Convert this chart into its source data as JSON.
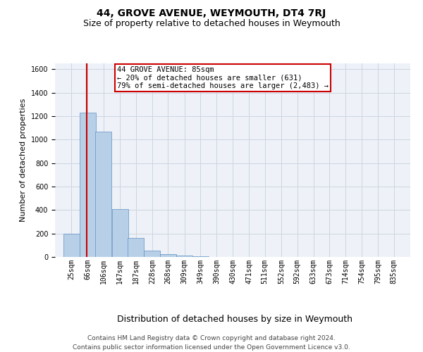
{
  "title": "44, GROVE AVENUE, WEYMOUTH, DT4 7RJ",
  "subtitle": "Size of property relative to detached houses in Weymouth",
  "xlabel": "Distribution of detached houses by size in Weymouth",
  "ylabel": "Number of detached properties",
  "footer_line1": "Contains HM Land Registry data © Crown copyright and database right 2024.",
  "footer_line2": "Contains public sector information licensed under the Open Government Licence v3.0.",
  "annotation_line1": "44 GROVE AVENUE: 85sqm",
  "annotation_line2": "← 20% of detached houses are smaller (631)",
  "annotation_line3": "79% of semi-detached houses are larger (2,483) →",
  "property_size_sqm": 85,
  "bar_color": "#b8cfe8",
  "bar_edge_color": "#6090c0",
  "vline_color": "#cc0000",
  "annotation_box_edgecolor": "#cc0000",
  "grid_color": "#ccd5e0",
  "background_color": "#eef2f8",
  "categories": [
    "25sqm",
    "66sqm",
    "106sqm",
    "147sqm",
    "187sqm",
    "228sqm",
    "268sqm",
    "309sqm",
    "349sqm",
    "390sqm",
    "430sqm",
    "471sqm",
    "511sqm",
    "552sqm",
    "592sqm",
    "633sqm",
    "673sqm",
    "714sqm",
    "754sqm",
    "795sqm",
    "835sqm"
  ],
  "bin_starts": [
    25,
    66,
    106,
    147,
    187,
    228,
    268,
    309,
    349,
    390,
    430,
    471,
    511,
    552,
    592,
    633,
    673,
    714,
    754,
    795,
    835
  ],
  "values": [
    200,
    1230,
    1070,
    410,
    165,
    55,
    25,
    15,
    5,
    2,
    0,
    0,
    0,
    0,
    0,
    0,
    0,
    0,
    0,
    0,
    0
  ],
  "ylim_max": 1650,
  "yticks": [
    0,
    200,
    400,
    600,
    800,
    1000,
    1200,
    1400,
    1600
  ],
  "title_fontsize": 10,
  "subtitle_fontsize": 9,
  "ylabel_fontsize": 8,
  "xlabel_fontsize": 9,
  "tick_fontsize": 7,
  "footer_fontsize": 6.5,
  "annotation_fontsize": 7.5
}
